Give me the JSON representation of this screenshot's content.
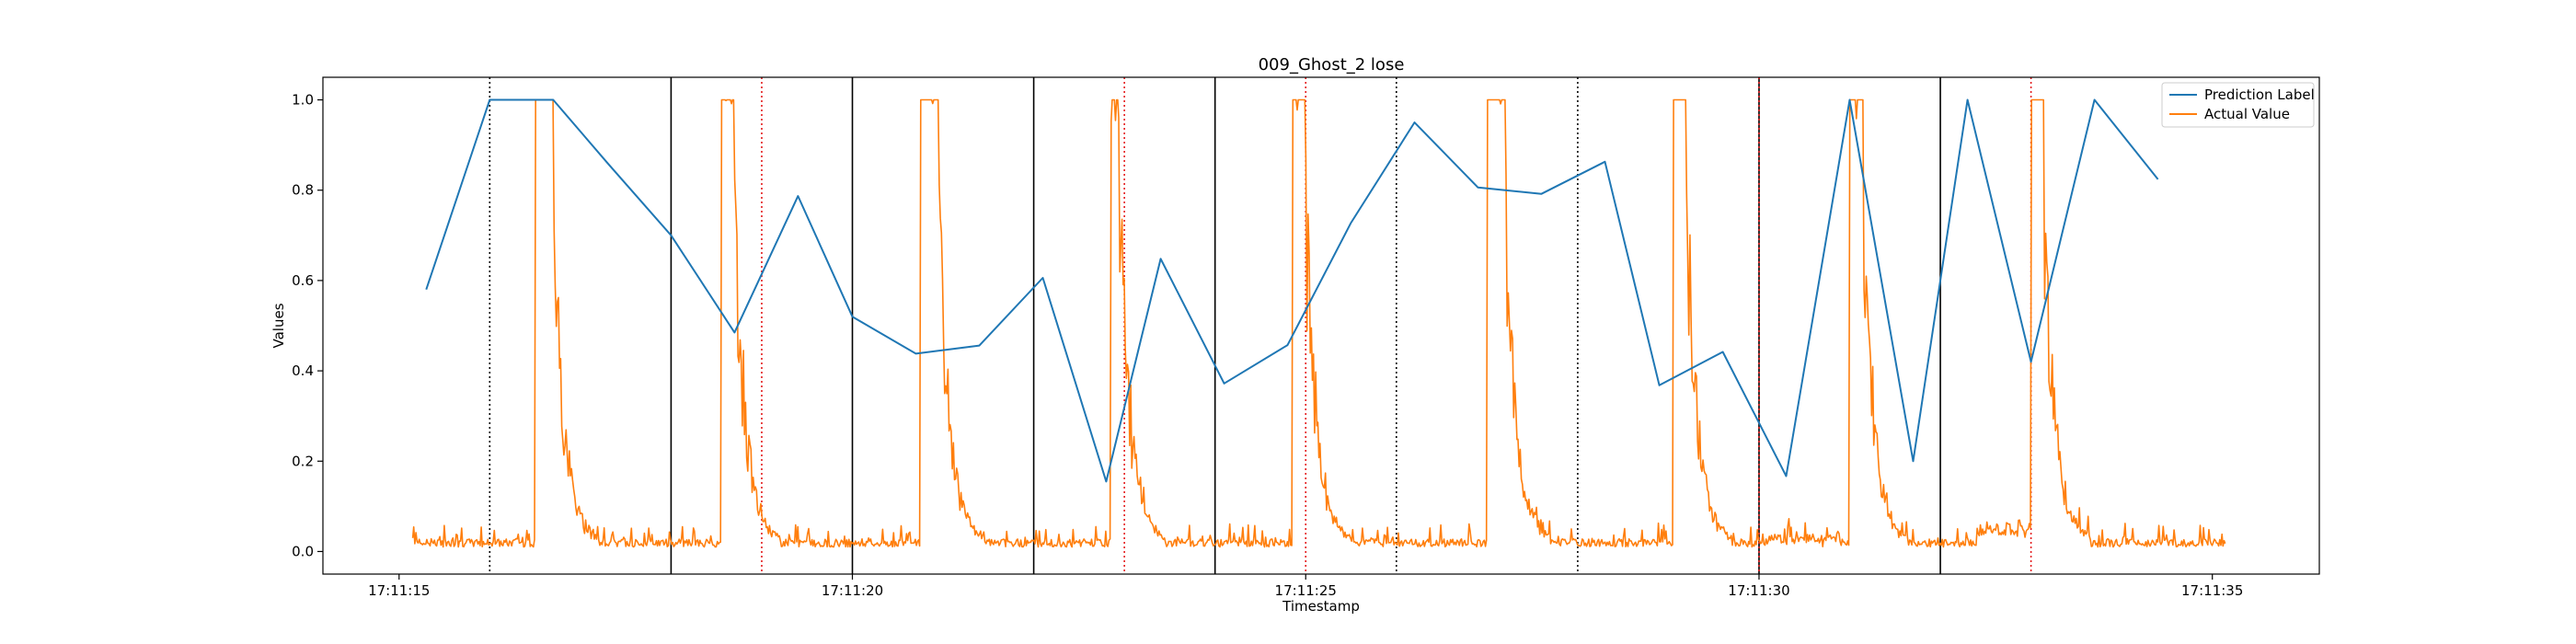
{
  "chart_data": {
    "type": "line",
    "title": "009_Ghost_2 lose",
    "xlabel": "Timestamp",
    "ylabel": "Values",
    "x_tick_labels": [
      "17:11:15",
      "17:11:20",
      "17:11:25",
      "17:11:30",
      "17:11:35"
    ],
    "x_tick_seconds": [
      15,
      20,
      25,
      30,
      35
    ],
    "y_ticks": [
      0.0,
      0.2,
      0.4,
      0.6,
      0.8,
      1.0
    ],
    "y_tick_labels": [
      "0.0",
      "0.2",
      "0.4",
      "0.6",
      "0.8",
      "1.0"
    ],
    "xlim": [
      14.16,
      36.18
    ],
    "ylim": [
      -0.05,
      1.05
    ],
    "grid": false,
    "legend_position": "top-right",
    "series": [
      {
        "name": "Prediction Label",
        "color": "#1f77b4",
        "x": [
          15.3,
          16.0,
          16.7,
          17.3,
          18.0,
          18.7,
          19.4,
          20.0,
          20.7,
          21.4,
          22.1,
          22.8,
          23.4,
          24.1,
          24.8,
          25.5,
          26.2,
          26.9,
          27.6,
          28.3,
          28.9,
          29.6,
          30.3,
          31.0,
          31.7,
          32.3,
          33.0,
          33.7,
          34.4
        ],
        "y": [
          0.58,
          1.0,
          1.0,
          0.86,
          0.7,
          0.485,
          0.787,
          0.52,
          0.438,
          0.456,
          0.606,
          0.155,
          0.648,
          0.372,
          0.457,
          0.728,
          0.95,
          0.806,
          0.792,
          0.863,
          0.368,
          0.442,
          0.167,
          1.0,
          0.2,
          1.0,
          0.42,
          1.0,
          0.824
        ]
      },
      {
        "name": "Actual Value",
        "color": "#ff7f0e",
        "pulses": [
          [
            16.5,
            16.7
          ],
          [
            18.55,
            18.7
          ],
          [
            20.75,
            20.95
          ],
          [
            22.85,
            22.95
          ],
          [
            24.85,
            25.0
          ],
          [
            27.0,
            27.2
          ],
          [
            29.05,
            29.2
          ],
          [
            31.0,
            31.15
          ],
          [
            33.0,
            33.15
          ]
        ],
        "baseline_range": [
          15.15,
          35.15
        ],
        "baseline_level": 0.01
      }
    ],
    "vlines": [
      {
        "x": 16.0,
        "style": "dotted",
        "color": "#000000"
      },
      {
        "x": 18.0,
        "style": "solid",
        "color": "#000000"
      },
      {
        "x": 19.0,
        "style": "dotted",
        "color": "#e41a1c"
      },
      {
        "x": 20.0,
        "style": "solid",
        "color": "#000000"
      },
      {
        "x": 22.0,
        "style": "solid",
        "color": "#000000"
      },
      {
        "x": 23.0,
        "style": "dotted",
        "color": "#e41a1c"
      },
      {
        "x": 24.0,
        "style": "solid",
        "color": "#000000"
      },
      {
        "x": 25.0,
        "style": "dotted",
        "color": "#e41a1c"
      },
      {
        "x": 26.0,
        "style": "dotted",
        "color": "#000000"
      },
      {
        "x": 28.0,
        "style": "dotted",
        "color": "#000000"
      },
      {
        "x": 30.0,
        "style": "solid",
        "color": "#000000"
      },
      {
        "x": 30.0,
        "style": "dotted",
        "color": "#e41a1c"
      },
      {
        "x": 32.0,
        "style": "solid",
        "color": "#000000"
      },
      {
        "x": 33.0,
        "style": "dotted",
        "color": "#e41a1c"
      }
    ]
  }
}
